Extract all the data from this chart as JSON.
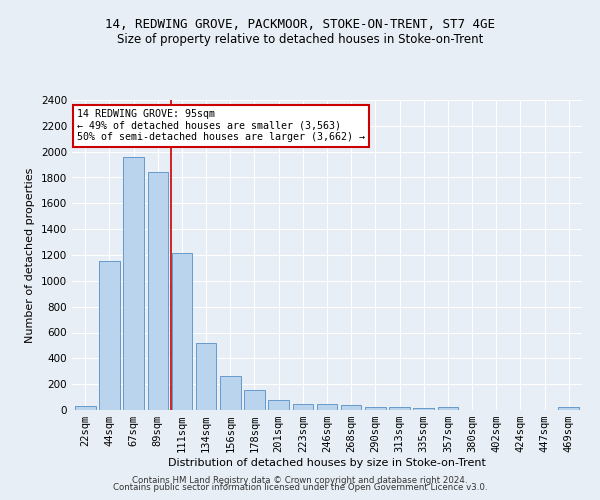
{
  "title1": "14, REDWING GROVE, PACKMOOR, STOKE-ON-TRENT, ST7 4GE",
  "title2": "Size of property relative to detached houses in Stoke-on-Trent",
  "xlabel": "Distribution of detached houses by size in Stoke-on-Trent",
  "ylabel": "Number of detached properties",
  "categories": [
    "22sqm",
    "44sqm",
    "67sqm",
    "89sqm",
    "111sqm",
    "134sqm",
    "156sqm",
    "178sqm",
    "201sqm",
    "223sqm",
    "246sqm",
    "268sqm",
    "290sqm",
    "313sqm",
    "335sqm",
    "357sqm",
    "380sqm",
    "402sqm",
    "424sqm",
    "447sqm",
    "469sqm"
  ],
  "values": [
    30,
    1150,
    1960,
    1840,
    1215,
    515,
    265,
    155,
    80,
    50,
    45,
    38,
    20,
    22,
    12,
    20,
    0,
    0,
    0,
    0,
    20
  ],
  "bar_color": "#bad4ee",
  "bar_edge_color": "#6699cc",
  "vline_x": 3.55,
  "vline_color": "#cc0000",
  "annotation_text": "14 REDWING GROVE: 95sqm\n← 49% of detached houses are smaller (3,563)\n50% of semi-detached houses are larger (3,662) →",
  "annotation_box_color": "#ffffff",
  "annotation_box_edge": "#cc0000",
  "ylim": [
    0,
    2400
  ],
  "yticks": [
    0,
    200,
    400,
    600,
    800,
    1000,
    1200,
    1400,
    1600,
    1800,
    2000,
    2200,
    2400
  ],
  "bg_color": "#e8eef5",
  "plot_bg_color": "#e8eef5",
  "footer1": "Contains HM Land Registry data © Crown copyright and database right 2024.",
  "footer2": "Contains public sector information licensed under the Open Government Licence v3.0.",
  "title1_fontsize": 9,
  "title2_fontsize": 8.5,
  "xlabel_fontsize": 8,
  "ylabel_fontsize": 8,
  "tick_fontsize": 7.5
}
